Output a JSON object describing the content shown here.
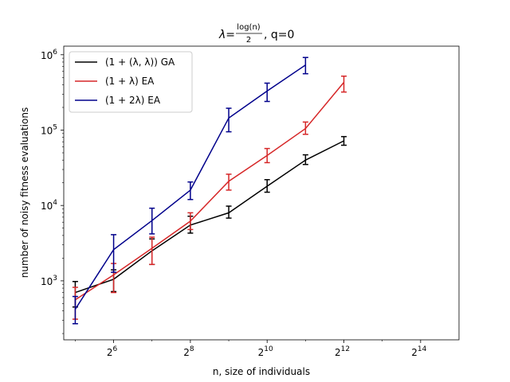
{
  "chart_data": {
    "type": "line",
    "title": {
      "lhs": "λ=",
      "frac_num": "log(n)",
      "frac_den": "2",
      "rest": ", q=0"
    },
    "xlabel": "n, size of individuals",
    "ylabel": "number of noisy fitness evaluations",
    "x_scale": "log2",
    "y_scale": "log10",
    "xlim": [
      26,
      32768
    ],
    "ylim": [
      165,
      1300000
    ],
    "x_ticks": [
      {
        "value": 64,
        "base": "2",
        "exp": "6"
      },
      {
        "value": 256,
        "base": "2",
        "exp": "8"
      },
      {
        "value": 1024,
        "base": "2",
        "exp": "10"
      },
      {
        "value": 4096,
        "base": "2",
        "exp": "12"
      },
      {
        "value": 16384,
        "base": "2",
        "exp": "14"
      }
    ],
    "y_ticks": [
      {
        "value": 1000,
        "base": "10",
        "exp": "3"
      },
      {
        "value": 10000,
        "base": "10",
        "exp": "4"
      },
      {
        "value": 100000,
        "base": "10",
        "exp": "5"
      },
      {
        "value": 1000000,
        "base": "10",
        "exp": "6"
      }
    ],
    "grid": false,
    "legend_position": "top-left",
    "series": [
      {
        "name": "(1 + (λ, λ)) GA",
        "color": "#000000",
        "points": [
          {
            "x": 32,
            "y": 700,
            "lo": 450,
            "hi": 980
          },
          {
            "x": 64,
            "y": 1050,
            "lo": 720,
            "hi": 1400
          },
          {
            "x": 128,
            "y": 2500,
            "lo": 1650,
            "hi": 3600
          },
          {
            "x": 256,
            "y": 5500,
            "lo": 4300,
            "hi": 7200
          },
          {
            "x": 512,
            "y": 8000,
            "lo": 6800,
            "hi": 9800
          },
          {
            "x": 1024,
            "y": 18000,
            "lo": 15000,
            "hi": 22000
          },
          {
            "x": 2048,
            "y": 40000,
            "lo": 35000,
            "hi": 47000
          },
          {
            "x": 4096,
            "y": 72000,
            "lo": 63000,
            "hi": 82000
          }
        ]
      },
      {
        "name": "(1 + λ) EA",
        "color": "#d62728",
        "points": [
          {
            "x": 32,
            "y": 560,
            "lo": 310,
            "hi": 820
          },
          {
            "x": 64,
            "y": 1200,
            "lo": 700,
            "hi": 1700
          },
          {
            "x": 128,
            "y": 2700,
            "lo": 1650,
            "hi": 3800
          },
          {
            "x": 256,
            "y": 6200,
            "lo": 4800,
            "hi": 8000
          },
          {
            "x": 512,
            "y": 21000,
            "lo": 16000,
            "hi": 26000
          },
          {
            "x": 1024,
            "y": 46000,
            "lo": 37000,
            "hi": 57000
          },
          {
            "x": 2048,
            "y": 105000,
            "lo": 88000,
            "hi": 128000
          },
          {
            "x": 4096,
            "y": 430000,
            "lo": 320000,
            "hi": 520000
          }
        ]
      },
      {
        "name": "(1 + 2λ) EA",
        "color": "#00008b",
        "points": [
          {
            "x": 32,
            "y": 420,
            "lo": 270,
            "hi": 620
          },
          {
            "x": 64,
            "y": 2600,
            "lo": 1300,
            "hi": 4100
          },
          {
            "x": 128,
            "y": 6300,
            "lo": 4200,
            "hi": 9200
          },
          {
            "x": 256,
            "y": 16000,
            "lo": 12000,
            "hi": 20500
          },
          {
            "x": 512,
            "y": 145000,
            "lo": 95000,
            "hi": 195000
          },
          {
            "x": 1024,
            "y": 330000,
            "lo": 240000,
            "hi": 420000
          },
          {
            "x": 2048,
            "y": 730000,
            "lo": 560000,
            "hi": 920000
          }
        ]
      }
    ]
  }
}
